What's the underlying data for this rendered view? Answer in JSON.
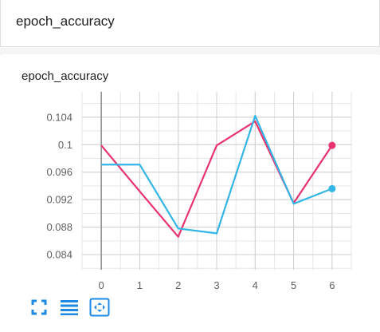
{
  "card": {
    "title": "epoch_accuracy"
  },
  "chart_data": {
    "type": "line",
    "title": "epoch_accuracy",
    "xlabel": "",
    "ylabel": "",
    "x": [
      0,
      1,
      2,
      3,
      4,
      5,
      6
    ],
    "xlim": [
      -0.5,
      6.5
    ],
    "ylim": [
      0.0818,
      0.1077
    ],
    "x_ticks": [
      0,
      1,
      2,
      3,
      4,
      5,
      6
    ],
    "y_ticks": [
      0.084,
      0.088,
      0.092,
      0.096,
      0.1,
      0.104
    ],
    "y_tick_labels": [
      "0.084",
      "0.088",
      "0.092",
      "0.096",
      "0.1",
      "0.104"
    ],
    "grid": true,
    "series": [
      {
        "color": "#e8336d",
        "values": [
          0.0999,
          0.0932,
          0.0866,
          0.0999,
          0.1034,
          0.0915,
          0.0999
        ]
      },
      {
        "color": "#33b5e5",
        "values": [
          0.0971,
          0.0971,
          0.0878,
          0.0871,
          0.1042,
          0.0914,
          0.0936
        ]
      }
    ]
  },
  "toolbar": {
    "icons": [
      "fullscreen-icon",
      "lines-icon",
      "fit-domain-icon"
    ]
  }
}
